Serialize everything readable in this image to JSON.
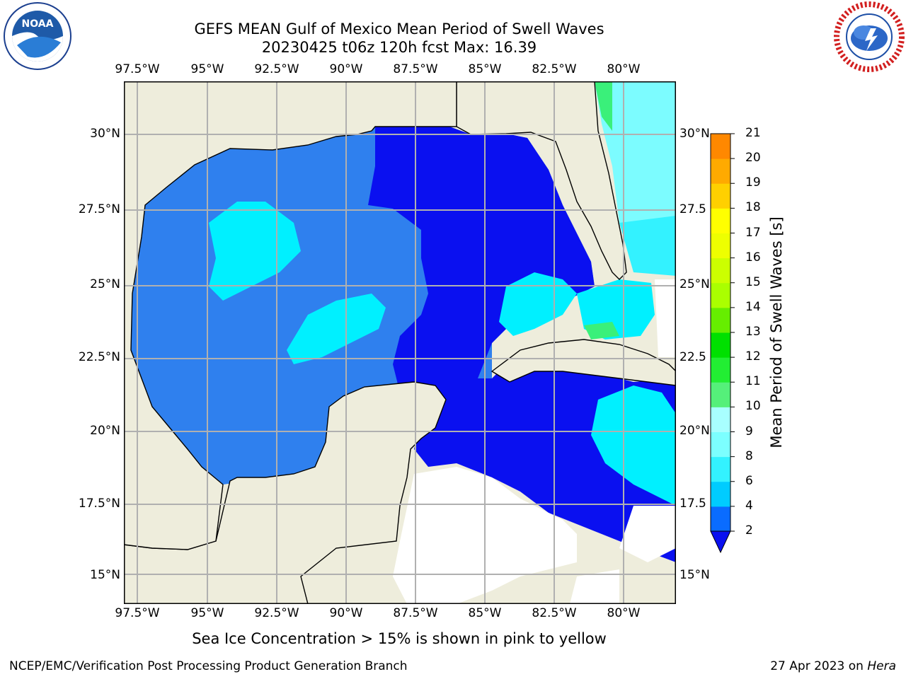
{
  "title_line1": "GEFS MEAN Gulf of Mexico Mean Period of Swell Waves",
  "title_line2": "20230425 t06z 120h fcst   Max: 16.39",
  "lon_labels": [
    "97.5°W",
    "95°W",
    "92.5°W",
    "90°W",
    "87.5°W",
    "85°W",
    "82.5°W",
    "80°W"
  ],
  "lat_labels_left": [
    "30°N",
    "27.5°N",
    "25°N",
    "22.5°N",
    "20°N",
    "17.5°N",
    "15°N"
  ],
  "lat_labels_right": [
    "30°N",
    "27.5",
    "25°N",
    "22.5",
    "20°N",
    "17.5",
    "15°N"
  ],
  "colorbar": {
    "label": "Mean Period of Swell Waves [s]",
    "ticks": [
      "2",
      "4",
      "6",
      "8",
      "9",
      "10",
      "11",
      "12",
      "13",
      "14",
      "15",
      "16",
      "17",
      "18",
      "19",
      "20",
      "21"
    ],
    "colors": [
      "#0a6cff",
      "#00c8ff",
      "#33f2ff",
      "#7cffff",
      "#a8ffff",
      "#55ff88",
      "#22ee44",
      "#00dd00",
      "#44ee00",
      "#99ff00",
      "#ccff00",
      "#eeff00",
      "#ffff00",
      "#ffcc00",
      "#ffaa00",
      "#ff8800",
      "#ff5500",
      "#ff2200",
      "#ff0000"
    ]
  },
  "footer_note": "Sea Ice Concentration > 15% is shown in pink to yellow",
  "footer_left": "NCEP/EMC/Verification Post Processing Product Generation Branch",
  "footer_date": "27 Apr 2023 on",
  "footer_machine": "Hera",
  "logos": {
    "left": "noaa-logo",
    "right": "nws-logo",
    "noaa_text": "NOAA"
  }
}
